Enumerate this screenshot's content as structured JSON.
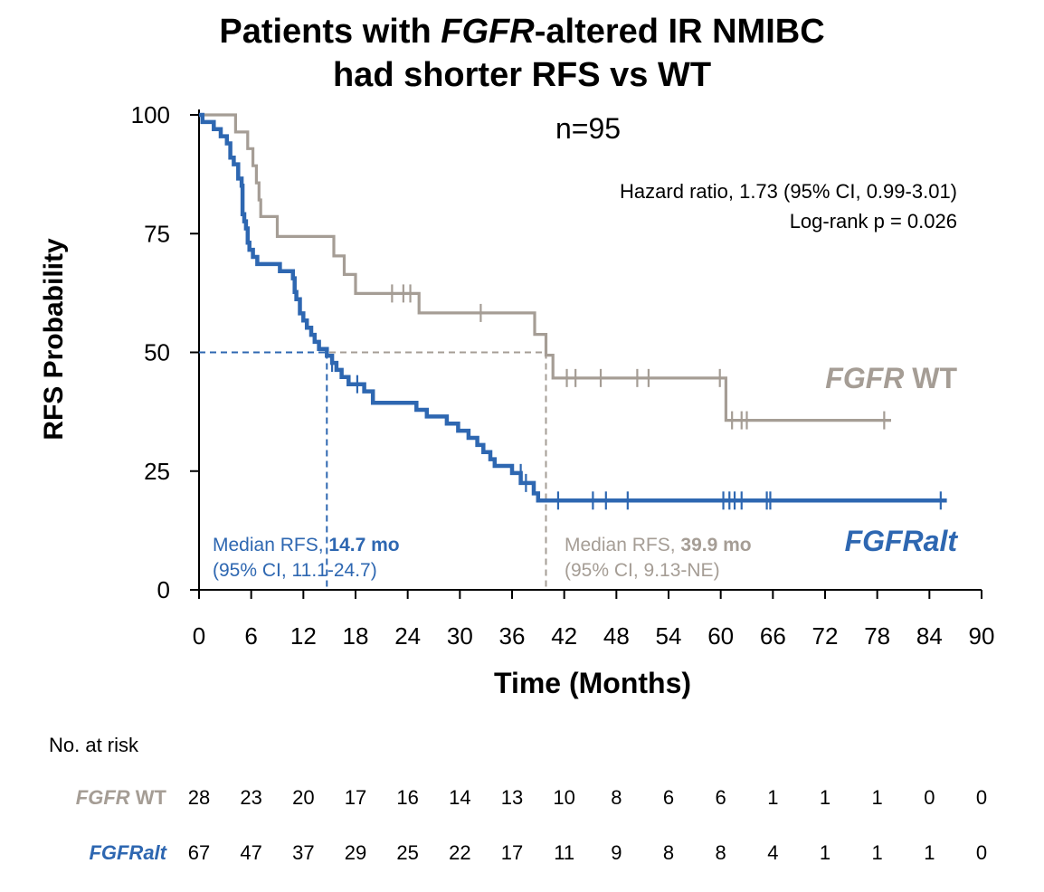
{
  "title": {
    "line1_pre": "Patients with ",
    "line1_em": "FGFR",
    "line1_post": "-altered IR NMIBC",
    "line2": "had shorter RFS vs WT"
  },
  "subtitle": "n=95",
  "stats": {
    "hazard_ratio": "Hazard ratio, 1.73 (95% CI, 0.99-3.01)",
    "logrank": "Log-rank p = 0.026"
  },
  "labels": {
    "wt_em": "FGFR",
    "wt_plain": " WT",
    "alt": "FGFRalt"
  },
  "medians": {
    "alt_prefix": "Median RFS, ",
    "alt_value": "14.7 mo",
    "alt_ci": "(95% CI, 11.1-24.7)",
    "wt_prefix": "Median RFS, ",
    "wt_value": "39.9 mo",
    "wt_ci": "(95% CI, 9.13-NE)"
  },
  "risk_table": {
    "title": "No. at risk",
    "wt_em": "FGFR",
    "wt_plain": " WT",
    "alt": "FGFRalt",
    "wt": [
      28,
      23,
      20,
      17,
      16,
      14,
      13,
      10,
      8,
      6,
      6,
      1,
      1,
      1,
      0,
      0
    ],
    "alt_counts": [
      67,
      47,
      37,
      29,
      25,
      22,
      17,
      11,
      9,
      8,
      8,
      4,
      1,
      1,
      1,
      0
    ]
  },
  "chart_data": {
    "type": "line",
    "title": "Patients with FGFR-altered IR NMIBC had shorter RFS vs WT",
    "xlabel": "Time (Months)",
    "ylabel": "RFS Probability",
    "xlim": [
      0,
      90
    ],
    "ylim": [
      0,
      100
    ],
    "xticks": [
      0,
      6,
      12,
      18,
      24,
      30,
      36,
      42,
      48,
      54,
      60,
      66,
      72,
      78,
      84,
      90
    ],
    "yticks": [
      0,
      25,
      50,
      75,
      100
    ],
    "grid": false,
    "colors": {
      "wt": "#a59d95",
      "alt": "#2e67b1"
    },
    "series": [
      {
        "name": "FGFR WT",
        "step": [
          [
            0,
            100
          ],
          [
            4.2,
            100
          ],
          [
            4.2,
            96.4
          ],
          [
            5.6,
            96.4
          ],
          [
            5.6,
            92.9
          ],
          [
            6.2,
            92.9
          ],
          [
            6.2,
            89.3
          ],
          [
            6.6,
            89.3
          ],
          [
            6.6,
            85.7
          ],
          [
            6.9,
            85.7
          ],
          [
            6.9,
            82.1
          ],
          [
            7.1,
            82.1
          ],
          [
            7.1,
            78.6
          ],
          [
            9.0,
            78.6
          ],
          [
            9.0,
            74.4
          ],
          [
            15.5,
            74.4
          ],
          [
            15.5,
            70.3
          ],
          [
            16.7,
            70.3
          ],
          [
            16.7,
            66.4
          ],
          [
            18.0,
            66.4
          ],
          [
            18.0,
            62.4
          ],
          [
            25.3,
            62.4
          ],
          [
            25.3,
            58.3
          ],
          [
            38.6,
            58.3
          ],
          [
            38.6,
            53.8
          ],
          [
            39.9,
            53.8
          ],
          [
            39.9,
            49.4
          ],
          [
            40.7,
            49.4
          ],
          [
            40.7,
            44.6
          ],
          [
            60.6,
            44.6
          ],
          [
            60.6,
            35.7
          ],
          [
            79.6,
            35.7
          ]
        ],
        "censor": [
          [
            22.2,
            62.4
          ],
          [
            23.5,
            62.4
          ],
          [
            24.3,
            62.4
          ],
          [
            32.4,
            58.3
          ],
          [
            42.3,
            44.6
          ],
          [
            43.3,
            44.6
          ],
          [
            46.2,
            44.6
          ],
          [
            50.4,
            44.6
          ],
          [
            51.7,
            44.6
          ],
          [
            59.9,
            44.6
          ],
          [
            61.3,
            35.7
          ],
          [
            62.4,
            35.7
          ],
          [
            63.0,
            35.7
          ],
          [
            78.8,
            35.7
          ]
        ],
        "median": 39.9
      },
      {
        "name": "FGFRalt",
        "step": [
          [
            0,
            100
          ],
          [
            0.4,
            100
          ],
          [
            0.4,
            98.5
          ],
          [
            1.7,
            98.5
          ],
          [
            1.7,
            97.0
          ],
          [
            2.5,
            97.0
          ],
          [
            2.5,
            95.5
          ],
          [
            3.2,
            95.5
          ],
          [
            3.2,
            94.0
          ],
          [
            3.6,
            94.0
          ],
          [
            3.6,
            91.0
          ],
          [
            4.0,
            91.0
          ],
          [
            4.0,
            89.6
          ],
          [
            4.5,
            89.6
          ],
          [
            4.5,
            86.6
          ],
          [
            4.9,
            86.6
          ],
          [
            4.9,
            85.1
          ],
          [
            5.0,
            85.1
          ],
          [
            5.0,
            79.1
          ],
          [
            5.2,
            79.1
          ],
          [
            5.2,
            77.6
          ],
          [
            5.4,
            77.6
          ],
          [
            5.4,
            76.1
          ],
          [
            5.6,
            76.1
          ],
          [
            5.6,
            73.1
          ],
          [
            5.8,
            73.1
          ],
          [
            5.8,
            71.6
          ],
          [
            6.2,
            71.6
          ],
          [
            6.2,
            70.1
          ],
          [
            6.7,
            70.1
          ],
          [
            6.7,
            68.6
          ],
          [
            9.3,
            68.6
          ],
          [
            9.3,
            67.1
          ],
          [
            10.8,
            67.1
          ],
          [
            10.8,
            65.6
          ],
          [
            11.0,
            65.6
          ],
          [
            11.0,
            62.7
          ],
          [
            11.2,
            62.7
          ],
          [
            11.2,
            61.2
          ],
          [
            11.6,
            61.2
          ],
          [
            11.6,
            58.2
          ],
          [
            12.0,
            58.2
          ],
          [
            12.0,
            56.7
          ],
          [
            12.4,
            56.7
          ],
          [
            12.4,
            55.2
          ],
          [
            12.9,
            55.2
          ],
          [
            12.9,
            53.7
          ],
          [
            13.3,
            53.7
          ],
          [
            13.3,
            52.2
          ],
          [
            13.8,
            52.2
          ],
          [
            13.8,
            50.7
          ],
          [
            14.7,
            50.7
          ],
          [
            14.7,
            49.3
          ],
          [
            15.3,
            49.3
          ],
          [
            15.3,
            47.8
          ],
          [
            15.8,
            47.8
          ],
          [
            15.8,
            46.3
          ],
          [
            16.4,
            46.3
          ],
          [
            16.4,
            44.8
          ],
          [
            17.2,
            44.8
          ],
          [
            17.2,
            43.3
          ],
          [
            19.0,
            43.3
          ],
          [
            19.0,
            41.8
          ],
          [
            20.0,
            41.8
          ],
          [
            20.0,
            39.4
          ],
          [
            25.0,
            39.4
          ],
          [
            25.0,
            37.9
          ],
          [
            26.2,
            37.9
          ],
          [
            26.2,
            36.5
          ],
          [
            28.5,
            36.5
          ],
          [
            28.5,
            35.0
          ],
          [
            29.8,
            35.0
          ],
          [
            29.8,
            33.5
          ],
          [
            31.0,
            33.5
          ],
          [
            31.0,
            32.0
          ],
          [
            32.0,
            32.0
          ],
          [
            32.0,
            30.5
          ],
          [
            32.7,
            30.5
          ],
          [
            32.7,
            29.0
          ],
          [
            33.5,
            29.0
          ],
          [
            33.5,
            27.5
          ],
          [
            34.0,
            27.5
          ],
          [
            34.0,
            26.1
          ],
          [
            36.0,
            26.1
          ],
          [
            36.0,
            24.6
          ],
          [
            37.0,
            24.6
          ],
          [
            37.0,
            22.5
          ],
          [
            38.5,
            22.5
          ],
          [
            38.5,
            20.3
          ],
          [
            39.0,
            20.3
          ],
          [
            39.0,
            18.8
          ],
          [
            86.0,
            18.8
          ]
        ],
        "censor": [
          [
            15.3,
            47.8
          ],
          [
            18.2,
            43.3
          ],
          [
            37.0,
            24.6
          ],
          [
            37.6,
            22.5
          ],
          [
            41.3,
            18.8
          ],
          [
            45.3,
            18.8
          ],
          [
            46.8,
            18.8
          ],
          [
            49.3,
            18.8
          ],
          [
            60.3,
            18.8
          ],
          [
            61.0,
            18.8
          ],
          [
            61.6,
            18.8
          ],
          [
            62.4,
            18.8
          ],
          [
            65.3,
            18.8
          ],
          [
            65.7,
            18.8
          ],
          [
            85.3,
            18.8
          ]
        ],
        "median": 14.7
      }
    ]
  }
}
